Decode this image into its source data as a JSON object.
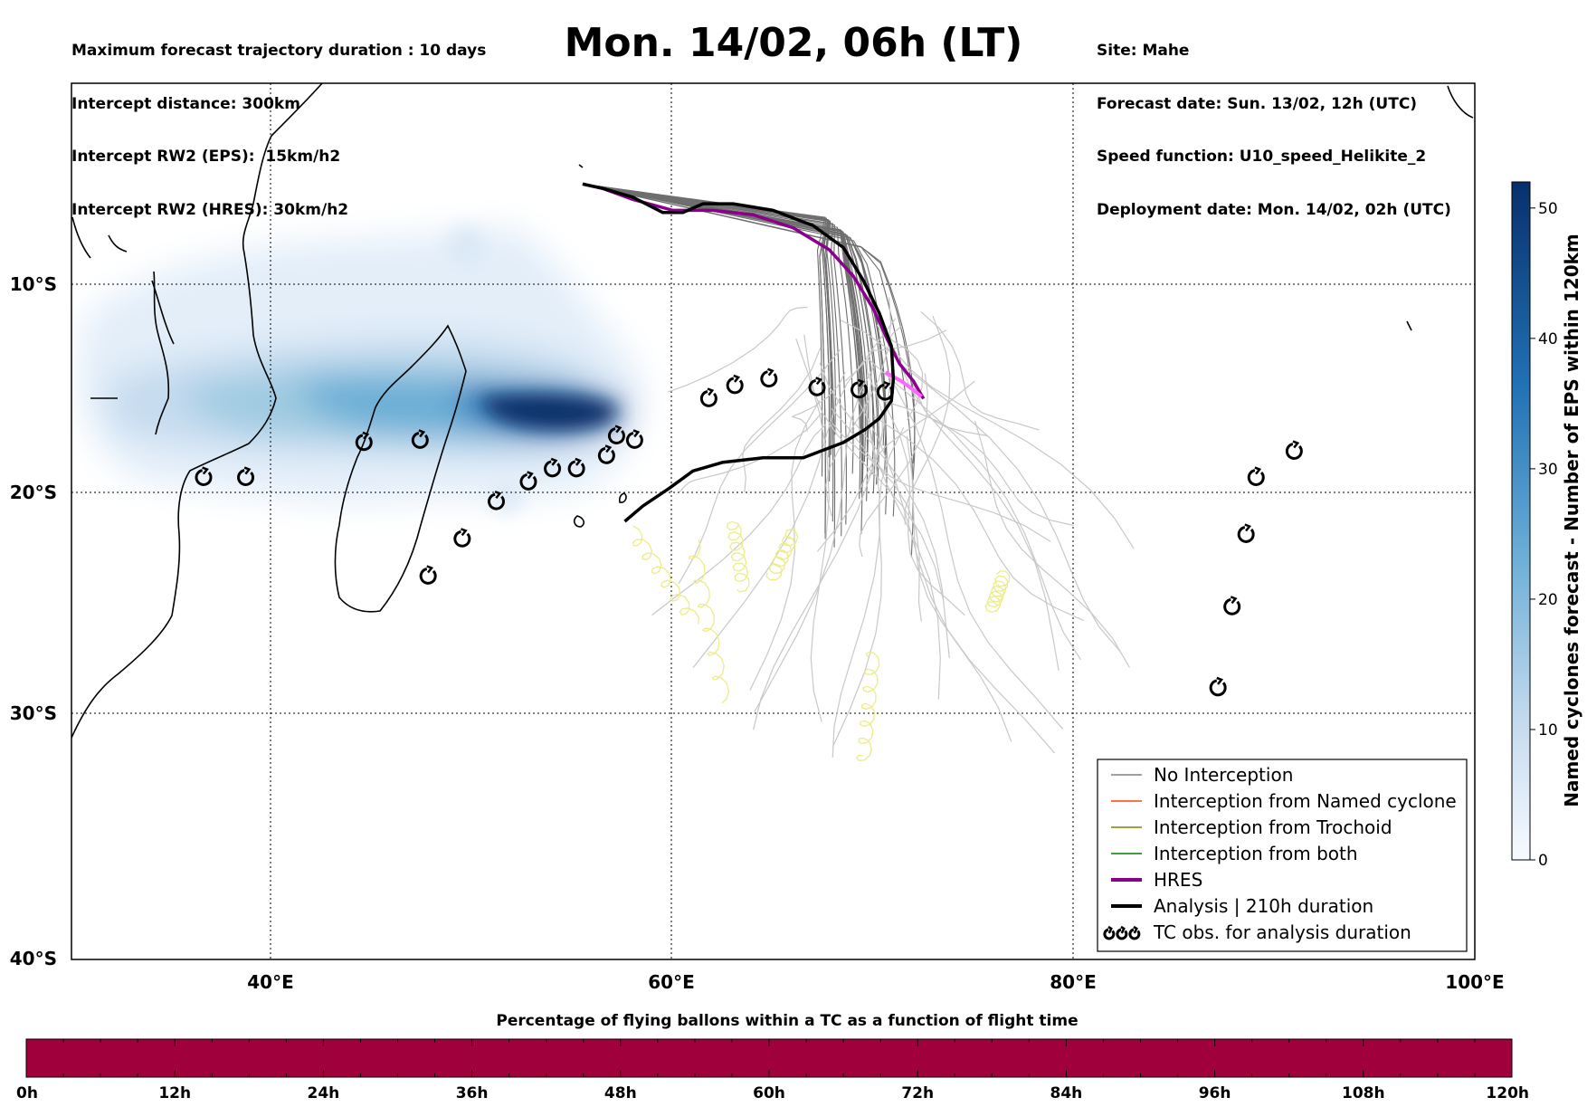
{
  "header": {
    "left_lines": [
      "Maximum forecast trajectory duration : 10 days",
      "Intercept distance: 300km",
      "Intercept RW2 (EPS):  15km/h2",
      "Intercept RW2 (HRES): 30km/h2"
    ],
    "title": "Mon. 14/02, 06h (LT)",
    "right_lines": [
      "Site: Mahe",
      "Forecast date: Sun. 13/02, 12h (UTC)",
      "Speed function: U10_speed_Helikite_2",
      "Deployment date: Mon. 14/02, 02h (UTC)"
    ]
  },
  "map": {
    "lon_range": [
      30,
      100
    ],
    "lat_range": [
      0,
      -40
    ],
    "lon_ticks": [
      "40°E",
      "60°E",
      "80°E",
      "100°E"
    ],
    "lat_ticks": [
      "10°S",
      "20°S",
      "30°S",
      "40°S"
    ],
    "gridlines": true
  },
  "legend": {
    "items": [
      {
        "label": "No Interception",
        "color": "#808080"
      },
      {
        "label": "Interception from Named cyclone",
        "color": "#ff4500"
      },
      {
        "label": "Interception from Trochoid",
        "color": "#808000"
      },
      {
        "label": "Interception from both",
        "color": "#008000"
      },
      {
        "label": "HRES",
        "color": "#8b008b"
      },
      {
        "label": "Analysis | 210h duration",
        "color": "#000000"
      },
      {
        "label": "TC obs. for analysis duration",
        "color": "#000000",
        "symbol": "cyclone-icon"
      }
    ]
  },
  "colorbar": {
    "label": "Named cyclones forecast - Number of EPS within 120km",
    "ticks": [
      "0",
      "10",
      "20",
      "30",
      "40",
      "50"
    ],
    "max": 52
  },
  "flight_bar": {
    "title": "Percentage of flying ballons within a TC as a function of flight time",
    "ticks": [
      "0h",
      "12h",
      "24h",
      "36h",
      "48h",
      "60h",
      "72h",
      "84h",
      "96h",
      "108h",
      "120h"
    ],
    "color": "#a0003c"
  },
  "tc_obs": [
    [
      36.6,
      -18.0
    ],
    [
      38.7,
      -18.0
    ],
    [
      44.6,
      -16.4
    ],
    [
      47.4,
      -16.3
    ],
    [
      47.8,
      -22.5
    ],
    [
      49.5,
      -20.8
    ],
    [
      51.2,
      -19.1
    ],
    [
      52.8,
      -18.2
    ],
    [
      54.0,
      -17.6
    ],
    [
      55.2,
      -17.6
    ],
    [
      56.7,
      -17.0
    ],
    [
      57.2,
      -16.1
    ],
    [
      58.1,
      -16.3
    ],
    [
      61.8,
      -14.4
    ],
    [
      63.1,
      -13.8
    ],
    [
      64.8,
      -13.5
    ],
    [
      67.2,
      -13.9
    ],
    [
      69.3,
      -14.0
    ],
    [
      70.6,
      -14.1
    ],
    [
      91.0,
      -16.8
    ],
    [
      89.1,
      -18.0
    ],
    [
      88.6,
      -20.6
    ],
    [
      87.9,
      -23.9
    ],
    [
      87.2,
      -27.6
    ]
  ],
  "analysis_track": [
    [
      55.5,
      -4.6
    ],
    [
      56.5,
      -4.8
    ],
    [
      58.0,
      -5.2
    ],
    [
      59.5,
      -5.9
    ],
    [
      60.5,
      -5.9
    ],
    [
      61.5,
      -5.5
    ],
    [
      63.0,
      -5.5
    ],
    [
      65.0,
      -5.8
    ],
    [
      67.0,
      -6.5
    ],
    [
      68.5,
      -7.5
    ],
    [
      69.5,
      -9.0
    ],
    [
      70.3,
      -10.5
    ],
    [
      70.9,
      -12.0
    ],
    [
      71.0,
      -13.5
    ],
    [
      70.9,
      -14.5
    ],
    [
      70.3,
      -15.3
    ],
    [
      69.6,
      -15.8
    ],
    [
      68.5,
      -16.4
    ],
    [
      66.5,
      -17.1
    ],
    [
      64.5,
      -17.1
    ],
    [
      62.5,
      -17.3
    ],
    [
      61.0,
      -17.7
    ],
    [
      59.8,
      -18.5
    ],
    [
      58.5,
      -19.3
    ],
    [
      57.6,
      -20.0
    ]
  ],
  "hres_track": [
    [
      55.5,
      -4.6
    ],
    [
      56.5,
      -4.8
    ],
    [
      58.0,
      -5.3
    ],
    [
      60.0,
      -5.8
    ],
    [
      62.0,
      -5.8
    ],
    [
      64.0,
      -6.0
    ],
    [
      66.0,
      -6.6
    ],
    [
      67.8,
      -7.6
    ],
    [
      69.0,
      -8.8
    ],
    [
      70.0,
      -10.3
    ],
    [
      70.7,
      -11.7
    ],
    [
      71.3,
      -12.8
    ],
    [
      72.0,
      -13.6
    ],
    [
      72.5,
      -14.4
    ]
  ]
}
